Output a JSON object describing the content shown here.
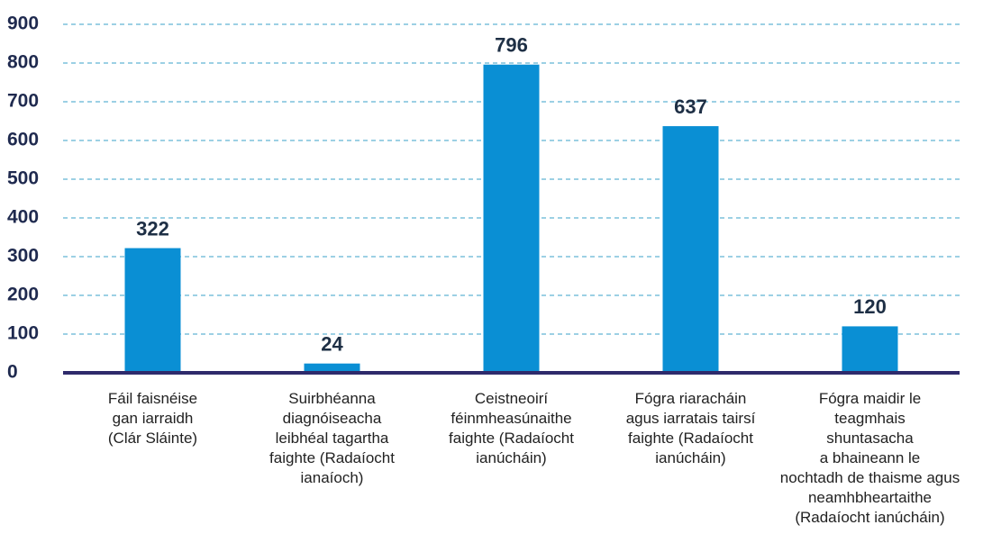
{
  "chart_data": {
    "type": "bar",
    "categories": [
      "Fáil faisnéise\ngan iarraidh\n(Clár Sláinte)",
      "Suirbhéanna\ndiagnóiseacha\nleibhéal tagartha\nfaighte (Radaíocht\nianaíoch)",
      "Ceistneoirí\nféinmheasúnaithe\nfaighte (Radaíocht\nianúcháin)",
      "Fógra riaracháin\nagus iarratais tairsí\nfaighte (Radaíocht\nianúcháin)",
      "Fógra maidir le\nteagmhais\nshuntasacha\na bhaineann le\nnochtadh de thaisme agus\nneamhbheartaithe\n(Radaíocht ianúcháin)"
    ],
    "values": [
      322,
      24,
      796,
      637,
      120
    ],
    "color": "#0a8fd4",
    "ylim": [
      0,
      900
    ],
    "yticks": [
      0,
      100,
      200,
      300,
      400,
      500,
      600,
      700,
      800,
      900
    ],
    "grid": true
  }
}
